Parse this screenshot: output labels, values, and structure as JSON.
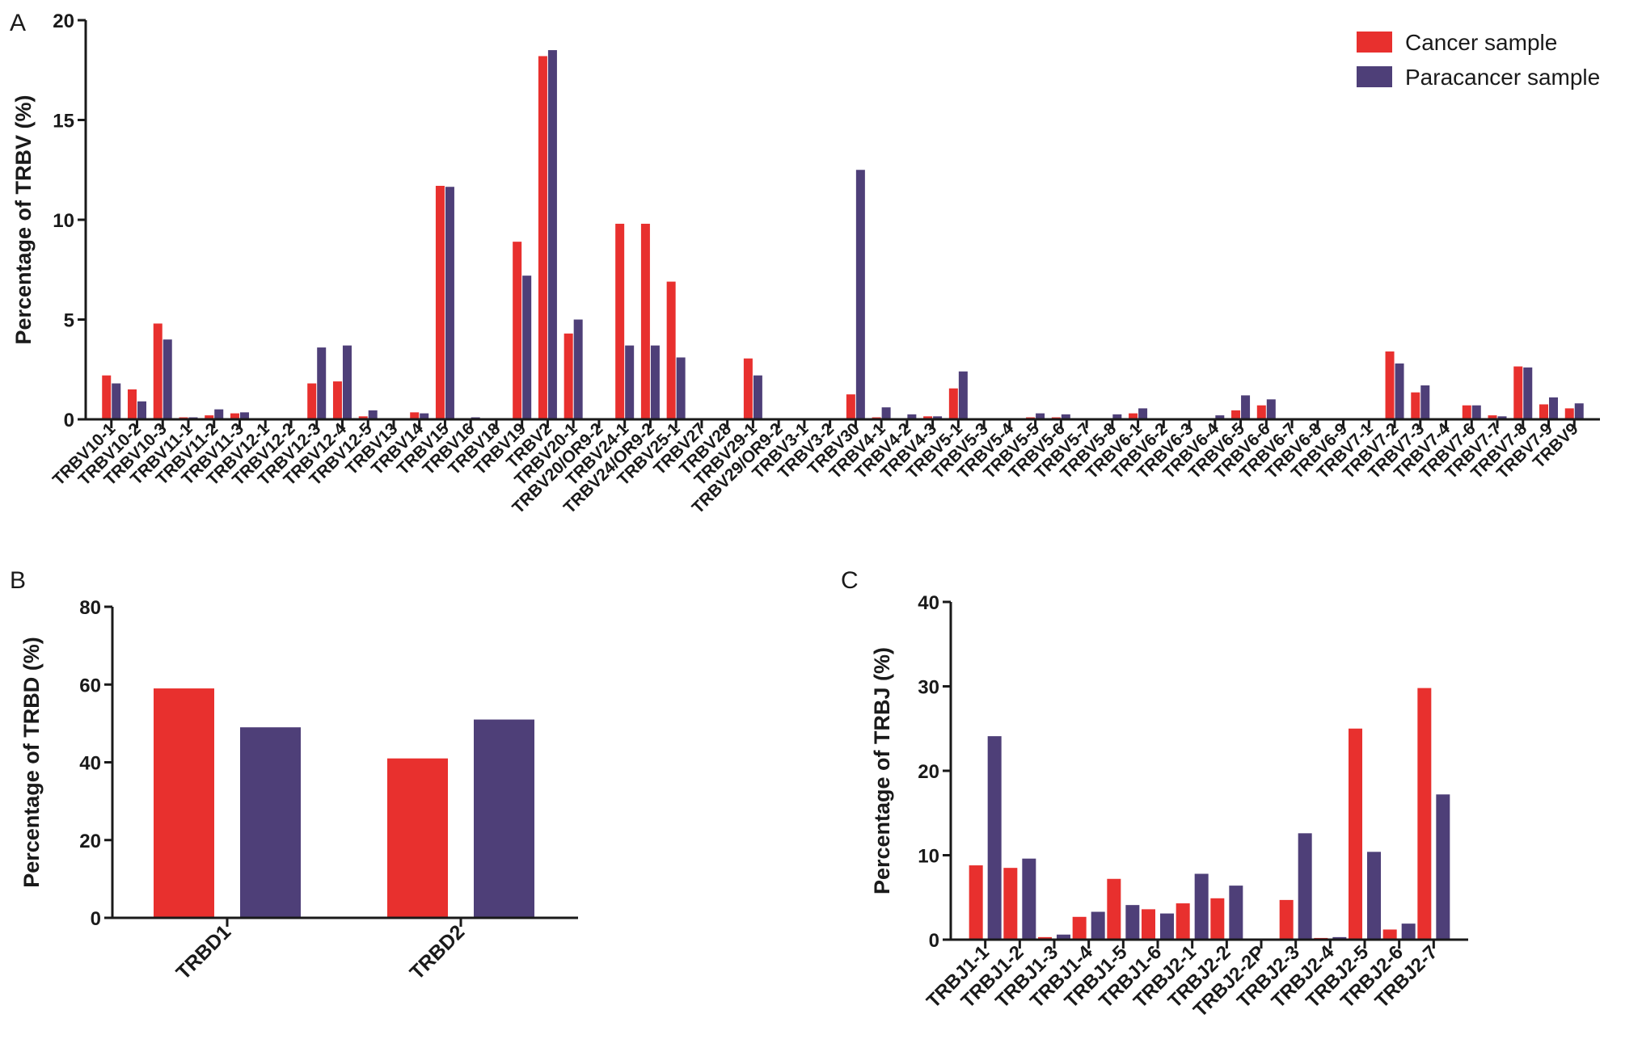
{
  "colors": {
    "cancer": "#e8302e",
    "paracancer": "#4e3f78",
    "axis": "#1a1a1a"
  },
  "legend": {
    "items": [
      {
        "label": "Cancer sample",
        "color": "#e8302e"
      },
      {
        "label": "Paracancer sample",
        "color": "#4e3f78"
      }
    ],
    "position": "top-right"
  },
  "chart_data": [
    {
      "panel": "A",
      "type": "bar",
      "title": "",
      "xlabel": "",
      "ylabel": "Percentage of TRBV (%)",
      "ylim": [
        0,
        20
      ],
      "yticks": [
        0,
        5,
        10,
        15,
        20
      ],
      "categories": [
        "TRBV10-1",
        "TRBV10-2",
        "TRBV10-3",
        "TRBV11-1",
        "TRBV11-2",
        "TRBV11-3",
        "TRBV12-1",
        "TRBV12-2",
        "TRBV12-3",
        "TRBV12-4",
        "TRBV12-5",
        "TRBV13",
        "TRBV14",
        "TRBV15",
        "TRBV16",
        "TRBV18",
        "TRBV19",
        "TRBV2",
        "TRBV20-1",
        "TRBV20/OR9-2",
        "TRBV24-1",
        "TRBV24/OR9-2",
        "TRBV25-1",
        "TRBV27",
        "TRBV28",
        "TRBV29-1",
        "TRBV29/OR9-2",
        "TRBV3-1",
        "TRBV3-2",
        "TRBV30",
        "TRBV4-1",
        "TRBV4-2",
        "TRBV4-3",
        "TRBV5-1",
        "TRBV5-3",
        "TRBV5-4",
        "TRBV5-5",
        "TRBV5-6",
        "TRBV5-7",
        "TRBV5-8",
        "TRBV6-1",
        "TRBV6-2",
        "TRBV6-3",
        "TRBV6-4",
        "TRBV6-5",
        "TRBV6-6",
        "TRBV6-7",
        "TRBV6-8",
        "TRBV6-9",
        "TRBV7-1",
        "TRBV7-2",
        "TRBV7-3",
        "TRBV7-4",
        "TRBV7-6",
        "TRBV7-7",
        "TRBV7-8",
        "TRBV7-9",
        "TRBV9"
      ],
      "series": [
        {
          "name": "Cancer sample",
          "values": [
            2.2,
            1.5,
            4.8,
            0.1,
            0.2,
            0.3,
            0,
            0,
            1.8,
            1.9,
            0.15,
            0.05,
            0.35,
            11.7,
            0.05,
            0,
            8.9,
            18.2,
            4.3,
            0,
            9.8,
            9.8,
            6.9,
            0.05,
            0,
            3.05,
            0,
            0,
            0,
            1.25,
            0.1,
            0.05,
            0.15,
            1.55,
            0,
            0.03,
            0.1,
            0.1,
            0,
            0.05,
            0.3,
            0,
            0,
            0.05,
            0.45,
            0.7,
            0,
            0,
            0,
            0,
            3.4,
            1.35,
            0.05,
            0.7,
            0.2,
            2.65,
            0.75,
            0.55
          ]
        },
        {
          "name": "Paracancer sample",
          "values": [
            1.8,
            0.9,
            4.0,
            0.1,
            0.5,
            0.35,
            0,
            0,
            3.6,
            3.7,
            0.45,
            0.05,
            0.3,
            11.65,
            0.1,
            0.05,
            7.2,
            18.5,
            5.0,
            0,
            3.7,
            3.7,
            3.1,
            0.05,
            0.05,
            2.2,
            0,
            0.03,
            0,
            12.5,
            0.6,
            0.25,
            0.15,
            2.4,
            0,
            0.05,
            0.3,
            0.25,
            0.03,
            0.25,
            0.55,
            0,
            0.03,
            0.2,
            1.2,
            1.0,
            0,
            0,
            0,
            0,
            2.8,
            1.7,
            0.05,
            0.7,
            0.15,
            2.6,
            1.1,
            0.8
          ]
        }
      ]
    },
    {
      "panel": "B",
      "type": "bar",
      "title": "",
      "xlabel": "",
      "ylabel": "Percentage of TRBD (%)",
      "ylim": [
        0,
        80
      ],
      "yticks": [
        0,
        20,
        40,
        60,
        80
      ],
      "categories": [
        "TRBD1",
        "TRBD2"
      ],
      "series": [
        {
          "name": "Cancer sample",
          "values": [
            59,
            41
          ]
        },
        {
          "name": "Paracancer sample",
          "values": [
            49,
            51
          ]
        }
      ]
    },
    {
      "panel": "C",
      "type": "bar",
      "title": "",
      "xlabel": "",
      "ylabel": "Percentage of TRBJ (%)",
      "ylim": [
        0,
        40
      ],
      "yticks": [
        0,
        10,
        20,
        30,
        40
      ],
      "categories": [
        "TRBJ1-1",
        "TRBJ1-2",
        "TRBJ1-3",
        "TRBJ1-4",
        "TRBJ1-5",
        "TRBJ1-6",
        "TRBJ2-1",
        "TRBJ2-2",
        "TRBJ2-2P",
        "TRBJ2-3",
        "TRBJ2-4",
        "TRBJ2-5",
        "TRBJ2-6",
        "TRBJ2-7"
      ],
      "series": [
        {
          "name": "Cancer sample",
          "values": [
            8.8,
            8.5,
            0.3,
            2.7,
            7.2,
            3.6,
            4.3,
            4.9,
            0,
            4.7,
            0.2,
            25.0,
            1.2,
            29.8
          ]
        },
        {
          "name": "Paracancer sample",
          "values": [
            24.1,
            9.6,
            0.6,
            3.3,
            4.1,
            3.1,
            7.8,
            6.4,
            0,
            12.6,
            0.3,
            10.4,
            1.9,
            17.2
          ]
        }
      ]
    }
  ]
}
